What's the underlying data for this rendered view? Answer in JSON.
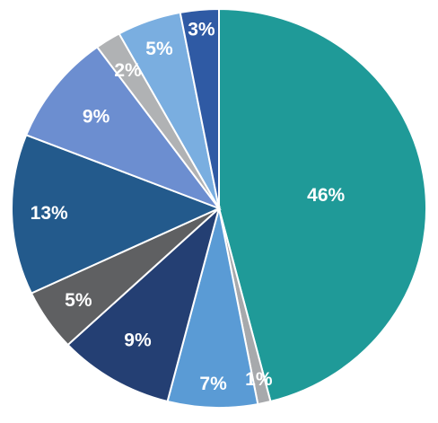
{
  "chart_data": {
    "type": "pie",
    "start_angle_deg": 0,
    "direction": "clockwise",
    "slices": [
      {
        "label": "46%",
        "value": 46,
        "color": "#1f9a98"
      },
      {
        "label": "1%",
        "value": 1,
        "color": "#a7a9ac"
      },
      {
        "label": "7%",
        "value": 7,
        "color": "#5a9bd5"
      },
      {
        "label": "9%",
        "value": 9,
        "color": "#243f73"
      },
      {
        "label": "5%",
        "value": 5,
        "color": "#5f6062"
      },
      {
        "label": "13%",
        "value": 13,
        "color": "#235a8c"
      },
      {
        "label": "9%",
        "value": 9,
        "color": "#6c8ed0"
      },
      {
        "label": "2%",
        "value": 2,
        "color": "#b0b2b4"
      },
      {
        "label": "5%",
        "value": 5,
        "color": "#7aaee0"
      },
      {
        "label": "3%",
        "value": 3,
        "color": "#2f5aa4"
      }
    ]
  }
}
